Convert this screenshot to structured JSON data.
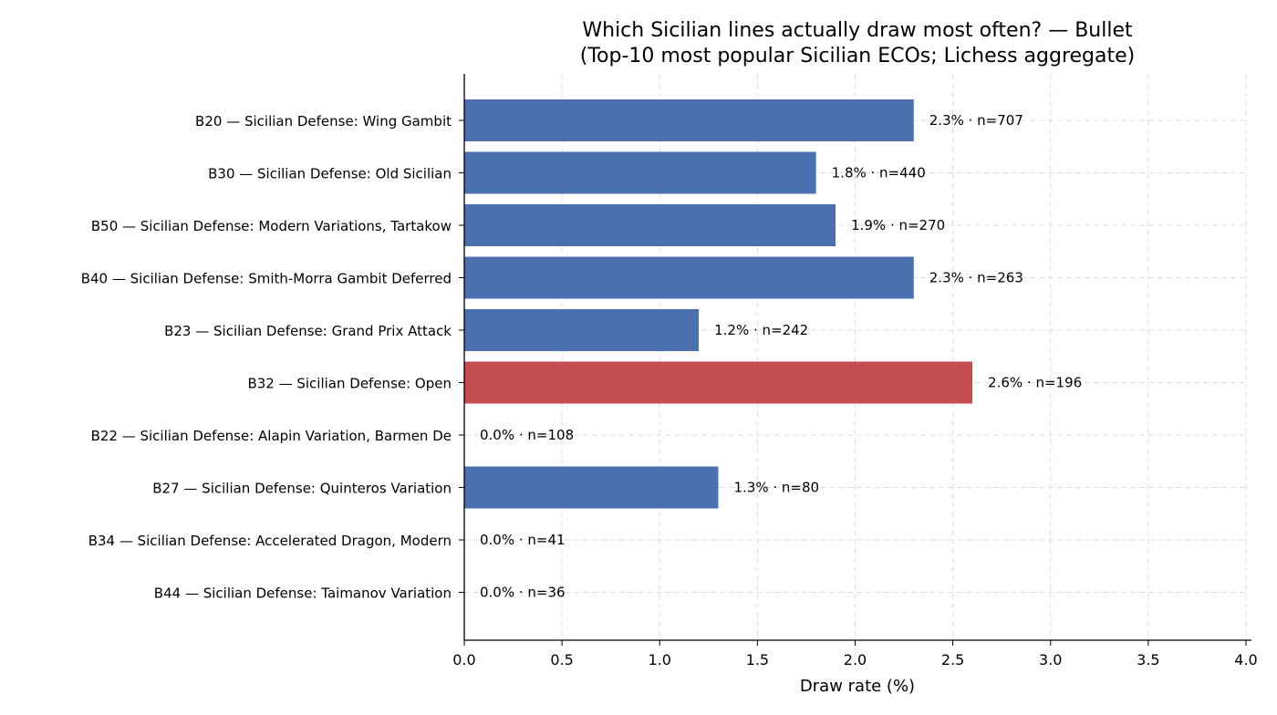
{
  "chart_data": {
    "type": "bar",
    "orientation": "horizontal",
    "title": "Which Sicilian lines actually draw most often? — Bullet",
    "subtitle": "(Top-10 most popular Sicilian ECOs; Lichess aggregate)",
    "xlabel": "Draw rate (%)",
    "ylabel": "",
    "xlim": [
      0,
      4.0
    ],
    "xticks": [
      "0.0",
      "0.5",
      "1.0",
      "1.5",
      "2.0",
      "2.5",
      "3.0",
      "3.5",
      "4.0"
    ],
    "grid": true,
    "categories": [
      "B20 — Sicilian Defense: Wing Gambit",
      "B30 — Sicilian Defense: Old Sicilian",
      "B50 — Sicilian Defense: Modern Variations, Tartakow",
      "B40 — Sicilian Defense: Smith-Morra Gambit Deferred",
      "B23 — Sicilian Defense: Grand Prix Attack",
      "B32 — Sicilian Defense: Open",
      "B22 — Sicilian Defense: Alapin Variation, Barmen De",
      "B27 — Sicilian Defense: Quinteros Variation",
      "B34 — Sicilian Defense: Accelerated Dragon, Modern ",
      "B44 — Sicilian Defense: Taimanov Variation"
    ],
    "values": [
      2.3,
      1.8,
      1.9,
      2.3,
      1.2,
      2.6,
      0.0,
      1.3,
      0.0,
      0.0
    ],
    "data_labels": [
      "2.3% · n=707",
      "1.8% · n=440",
      "1.9% · n=270",
      "2.3% · n=263",
      "1.2% · n=242",
      "2.6% · n=196",
      "0.0% · n=108",
      "1.3% · n=80",
      "0.0% · n=41",
      "0.0% · n=36"
    ],
    "highlight_index": 5,
    "colors": {
      "bar": "#4a70b0",
      "highlight": "#c44e52",
      "grid": "#dddddd",
      "axis": "#000000"
    }
  }
}
